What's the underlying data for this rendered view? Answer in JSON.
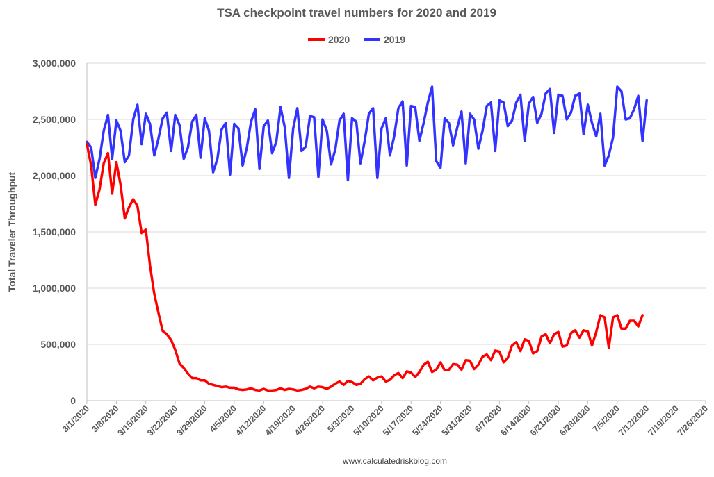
{
  "chart_data": {
    "type": "line",
    "title": "TSA checkpoint travel numbers for 2020 and 2019",
    "xlabel": "",
    "ylabel": "Total Traveler Throughput",
    "ylim": [
      0,
      3000000
    ],
    "yticks": [
      0,
      500000,
      1000000,
      1500000,
      2000000,
      2500000,
      3000000
    ],
    "ytick_labels": [
      "0",
      "500,000",
      "1,000,000",
      "1,500,000",
      "2,000,000",
      "2,500,000",
      "3,000,000"
    ],
    "xlim_days": [
      0,
      147
    ],
    "x_unit": "days since 3/1/2020",
    "xtick_labels": [
      "3/1/2020",
      "3/8/2020",
      "3/15/2020",
      "3/22/2020",
      "3/29/2020",
      "4/5/2020",
      "4/12/2020",
      "4/19/2020",
      "4/26/2020",
      "5/3/2020",
      "5/10/2020",
      "5/17/2020",
      "5/24/2020",
      "5/31/2020",
      "6/7/2020",
      "6/14/2020",
      "6/21/2020",
      "6/28/2020",
      "7/5/2020",
      "7/12/2020",
      "7/19/2020",
      "7/26/2020"
    ],
    "legend_position": "top-center",
    "grid": true,
    "series": [
      {
        "name": "2020",
        "color": "#ff0000",
        "values": [
          2280000,
          2090000,
          1740000,
          1880000,
          2110000,
          2200000,
          1840000,
          2120000,
          1920000,
          1620000,
          1720000,
          1790000,
          1730000,
          1490000,
          1520000,
          1200000,
          950000,
          780000,
          620000,
          590000,
          540000,
          450000,
          330000,
          290000,
          240000,
          200000,
          200000,
          180000,
          180000,
          150000,
          140000,
          130000,
          120000,
          125000,
          115000,
          115000,
          100000,
          95000,
          100000,
          110000,
          95000,
          90000,
          105000,
          90000,
          90000,
          95000,
          110000,
          95000,
          105000,
          100000,
          90000,
          95000,
          105000,
          125000,
          110000,
          125000,
          120000,
          105000,
          125000,
          150000,
          170000,
          140000,
          175000,
          165000,
          140000,
          150000,
          190000,
          215000,
          180000,
          205000,
          215000,
          170000,
          185000,
          225000,
          245000,
          200000,
          260000,
          250000,
          210000,
          255000,
          320000,
          345000,
          255000,
          275000,
          340000,
          270000,
          275000,
          325000,
          320000,
          275000,
          360000,
          355000,
          280000,
          320000,
          390000,
          410000,
          360000,
          445000,
          435000,
          340000,
          380000,
          490000,
          520000,
          440000,
          545000,
          530000,
          420000,
          440000,
          570000,
          590000,
          510000,
          590000,
          610000,
          480000,
          490000,
          600000,
          625000,
          560000,
          625000,
          615000,
          490000,
          610000,
          760000,
          740000,
          470000,
          740000,
          760000,
          640000,
          640000,
          710000,
          710000,
          660000,
          760000
        ],
        "values_2019": null
      },
      {
        "name": "2019",
        "color": "#3333ff",
        "values": [
          2300000,
          2250000,
          1980000,
          2150000,
          2400000,
          2540000,
          2150000,
          2490000,
          2400000,
          2120000,
          2180000,
          2500000,
          2630000,
          2280000,
          2550000,
          2460000,
          2180000,
          2330000,
          2510000,
          2560000,
          2220000,
          2540000,
          2450000,
          2150000,
          2250000,
          2480000,
          2540000,
          2160000,
          2510000,
          2400000,
          2030000,
          2150000,
          2410000,
          2470000,
          2010000,
          2460000,
          2420000,
          2090000,
          2250000,
          2480000,
          2590000,
          2060000,
          2440000,
          2490000,
          2200000,
          2300000,
          2610000,
          2430000,
          1980000,
          2420000,
          2600000,
          2220000,
          2260000,
          2530000,
          2520000,
          1990000,
          2500000,
          2400000,
          2100000,
          2230000,
          2490000,
          2550000,
          1960000,
          2510000,
          2480000,
          2110000,
          2310000,
          2550000,
          2600000,
          1980000,
          2420000,
          2510000,
          2180000,
          2350000,
          2600000,
          2660000,
          2090000,
          2620000,
          2610000,
          2310000,
          2470000,
          2650000,
          2790000,
          2130000,
          2070000,
          2510000,
          2470000,
          2270000,
          2430000,
          2570000,
          2110000,
          2550000,
          2500000,
          2240000,
          2400000,
          2620000,
          2650000,
          2220000,
          2670000,
          2650000,
          2440000,
          2490000,
          2650000,
          2720000,
          2310000,
          2640000,
          2700000,
          2470000,
          2550000,
          2730000,
          2770000,
          2380000,
          2720000,
          2710000,
          2500000,
          2560000,
          2710000,
          2730000,
          2370000,
          2630000,
          2470000,
          2350000,
          2550000,
          2090000,
          2180000,
          2340000,
          2790000,
          2750000,
          2500000,
          2510000,
          2590000,
          2710000,
          2310000,
          2670000
        ]
      }
    ]
  },
  "footer": {
    "source": "www.calculatedriskblog.com"
  }
}
